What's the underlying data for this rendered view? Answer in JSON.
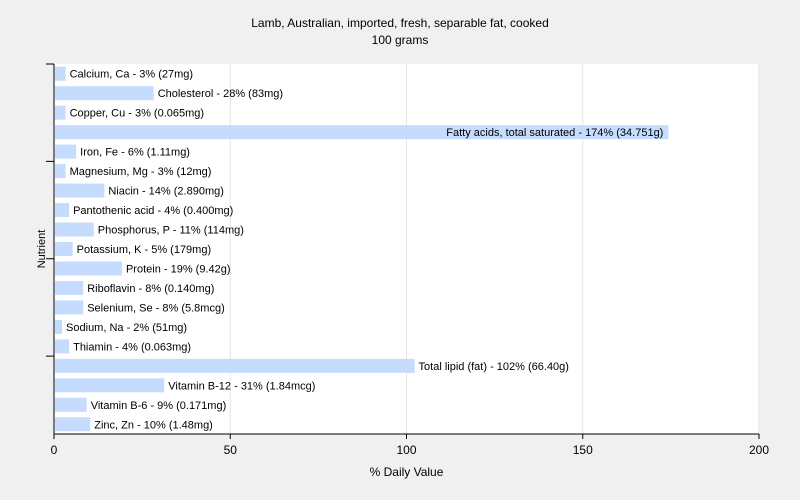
{
  "chart_data": {
    "type": "bar",
    "orientation": "horizontal",
    "title": "Lamb, Australian, imported, fresh, separable fat, cooked",
    "subtitle": "100 grams",
    "xlabel": "% Daily Value",
    "ylabel": "Nutrient",
    "xlim": [
      0,
      200
    ],
    "xticks": [
      "0",
      "50",
      "100",
      "150",
      "200"
    ],
    "grid": true,
    "bar_color": "#c5dcff",
    "categories": [
      "Calcium, Ca",
      "Cholesterol",
      "Copper, Cu",
      "Fatty acids, total saturated",
      "Iron, Fe",
      "Magnesium, Mg",
      "Niacin",
      "Pantothenic acid",
      "Phosphorus, P",
      "Potassium, K",
      "Protein",
      "Riboflavin",
      "Selenium, Se",
      "Sodium, Na",
      "Thiamin",
      "Total lipid (fat)",
      "Vitamin B-12",
      "Vitamin B-6",
      "Zinc, Zn"
    ],
    "values": [
      3,
      28,
      3,
      174,
      6,
      3,
      14,
      4,
      11,
      5,
      19,
      8,
      8,
      2,
      4,
      102,
      31,
      9,
      10
    ],
    "labels": [
      "Calcium, Ca - 3% (27mg)",
      "Cholesterol - 28% (83mg)",
      "Copper, Cu - 3% (0.065mg)",
      "Fatty acids, total saturated - 174% (34.751g)",
      "Iron, Fe - 6% (1.11mg)",
      "Magnesium, Mg - 3% (12mg)",
      "Niacin - 14% (2.890mg)",
      "Pantothenic acid - 4% (0.400mg)",
      "Phosphorus, P - 11% (114mg)",
      "Potassium, K - 5% (179mg)",
      "Protein - 19% (9.42g)",
      "Riboflavin - 8% (0.140mg)",
      "Selenium, Se - 8% (5.8mcg)",
      "Sodium, Na - 2% (51mg)",
      "Thiamin - 4% (0.063mg)",
      "Total lipid (fat) - 102% (66.40g)",
      "Vitamin B-12 - 31% (1.84mcg)",
      "Vitamin B-6 - 9% (0.171mg)",
      "Zinc, Zn - 10% (1.48mg)"
    ]
  }
}
